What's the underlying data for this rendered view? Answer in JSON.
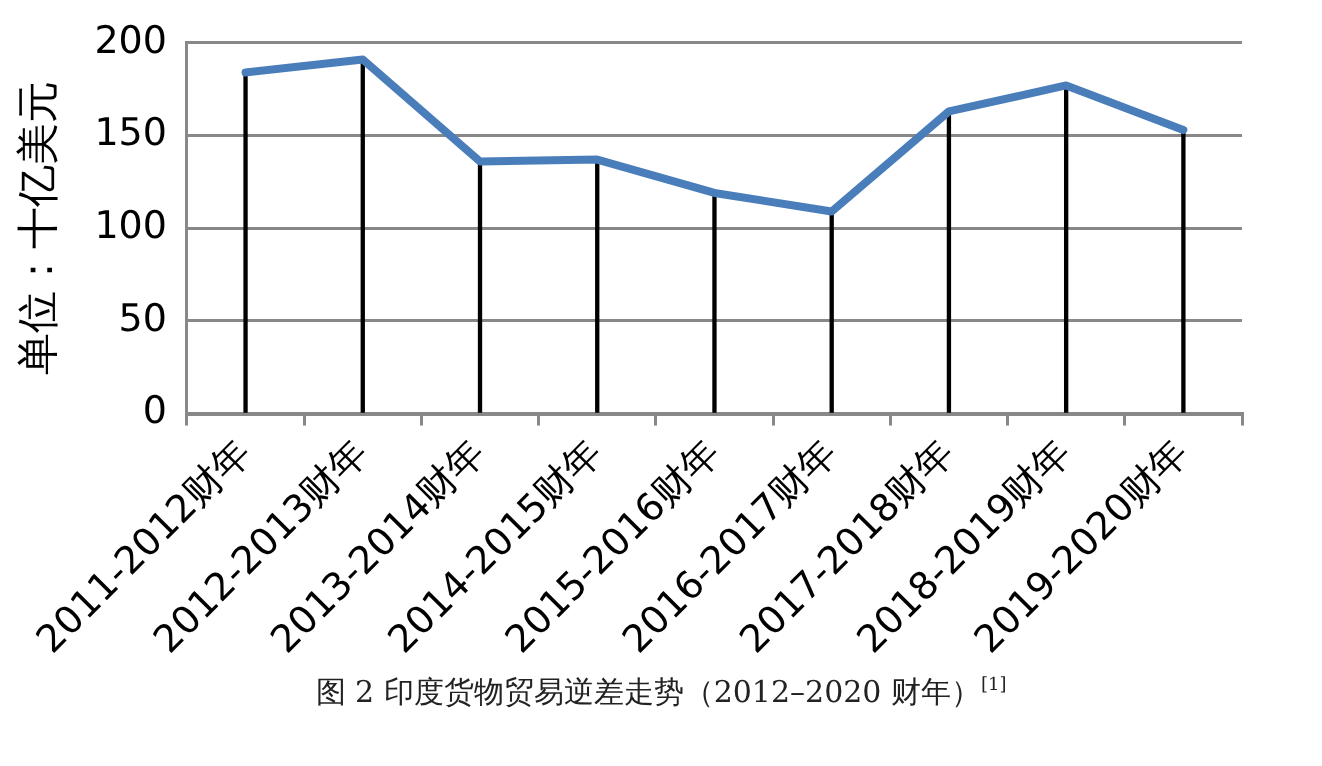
{
  "chart_data": {
    "type": "line",
    "ylabel": "单位：十亿美元",
    "categories": [
      "2011-2012财年",
      "2012-2013财年",
      "2013-2014财年",
      "2014-2015财年",
      "2015-2016财年",
      "2016-2017财年",
      "2017-2018财年",
      "2018-2019财年",
      "2019-2020财年"
    ],
    "series": [
      {
        "color": "#4a7ebb",
        "values": [
          184,
          191,
          136,
          137,
          119,
          109,
          163,
          177,
          153
        ]
      },
      {
        "type": "bar",
        "color": "#000000",
        "values": [
          184,
          191,
          136,
          137,
          119,
          109,
          163,
          177,
          153
        ]
      }
    ],
    "ylim": [
      0,
      200
    ],
    "yticks": [
      0,
      50,
      100,
      150,
      200
    ],
    "grid": "y",
    "legend": false,
    "marker": "none",
    "line_style": "solid",
    "annotations": [
      "图 2 印度货物贸易逆差走势（2012–2020 财年）$^{[1]}$"
    ]
  }
}
